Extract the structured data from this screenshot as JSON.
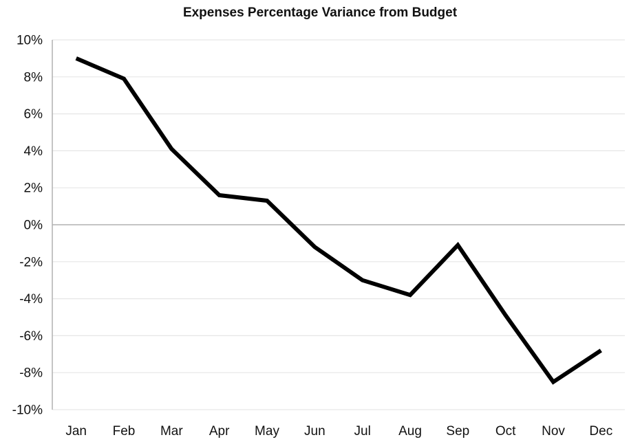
{
  "chart_data": {
    "type": "line",
    "title": "Expenses Percentage Variance from Budget",
    "xlabel": "",
    "ylabel": "",
    "categories": [
      "Jan",
      "Feb",
      "Mar",
      "Apr",
      "May",
      "Jun",
      "Jul",
      "Aug",
      "Sep",
      "Oct",
      "Nov",
      "Dec"
    ],
    "series": [
      {
        "values": [
          9.0,
          7.9,
          4.1,
          1.6,
          1.3,
          -1.2,
          -3.0,
          -3.8,
          -1.1,
          -4.9,
          -8.5,
          -6.8
        ]
      }
    ],
    "ylim": [
      -10,
      10
    ],
    "y_ticks": [
      10,
      8,
      6,
      4,
      2,
      0,
      -2,
      -4,
      -6,
      -8,
      -10
    ],
    "y_tick_labels": [
      "10%",
      "8%",
      "6%",
      "4%",
      "2%",
      "0%",
      "-2%",
      "-4%",
      "-6%",
      "-8%",
      "-10%"
    ],
    "grid": true,
    "legend": "none",
    "colors": {
      "line": "#000000",
      "grid": "#e6e6e6",
      "zero_line": "#b0b0b0",
      "axis": "#b0b0b0"
    }
  }
}
